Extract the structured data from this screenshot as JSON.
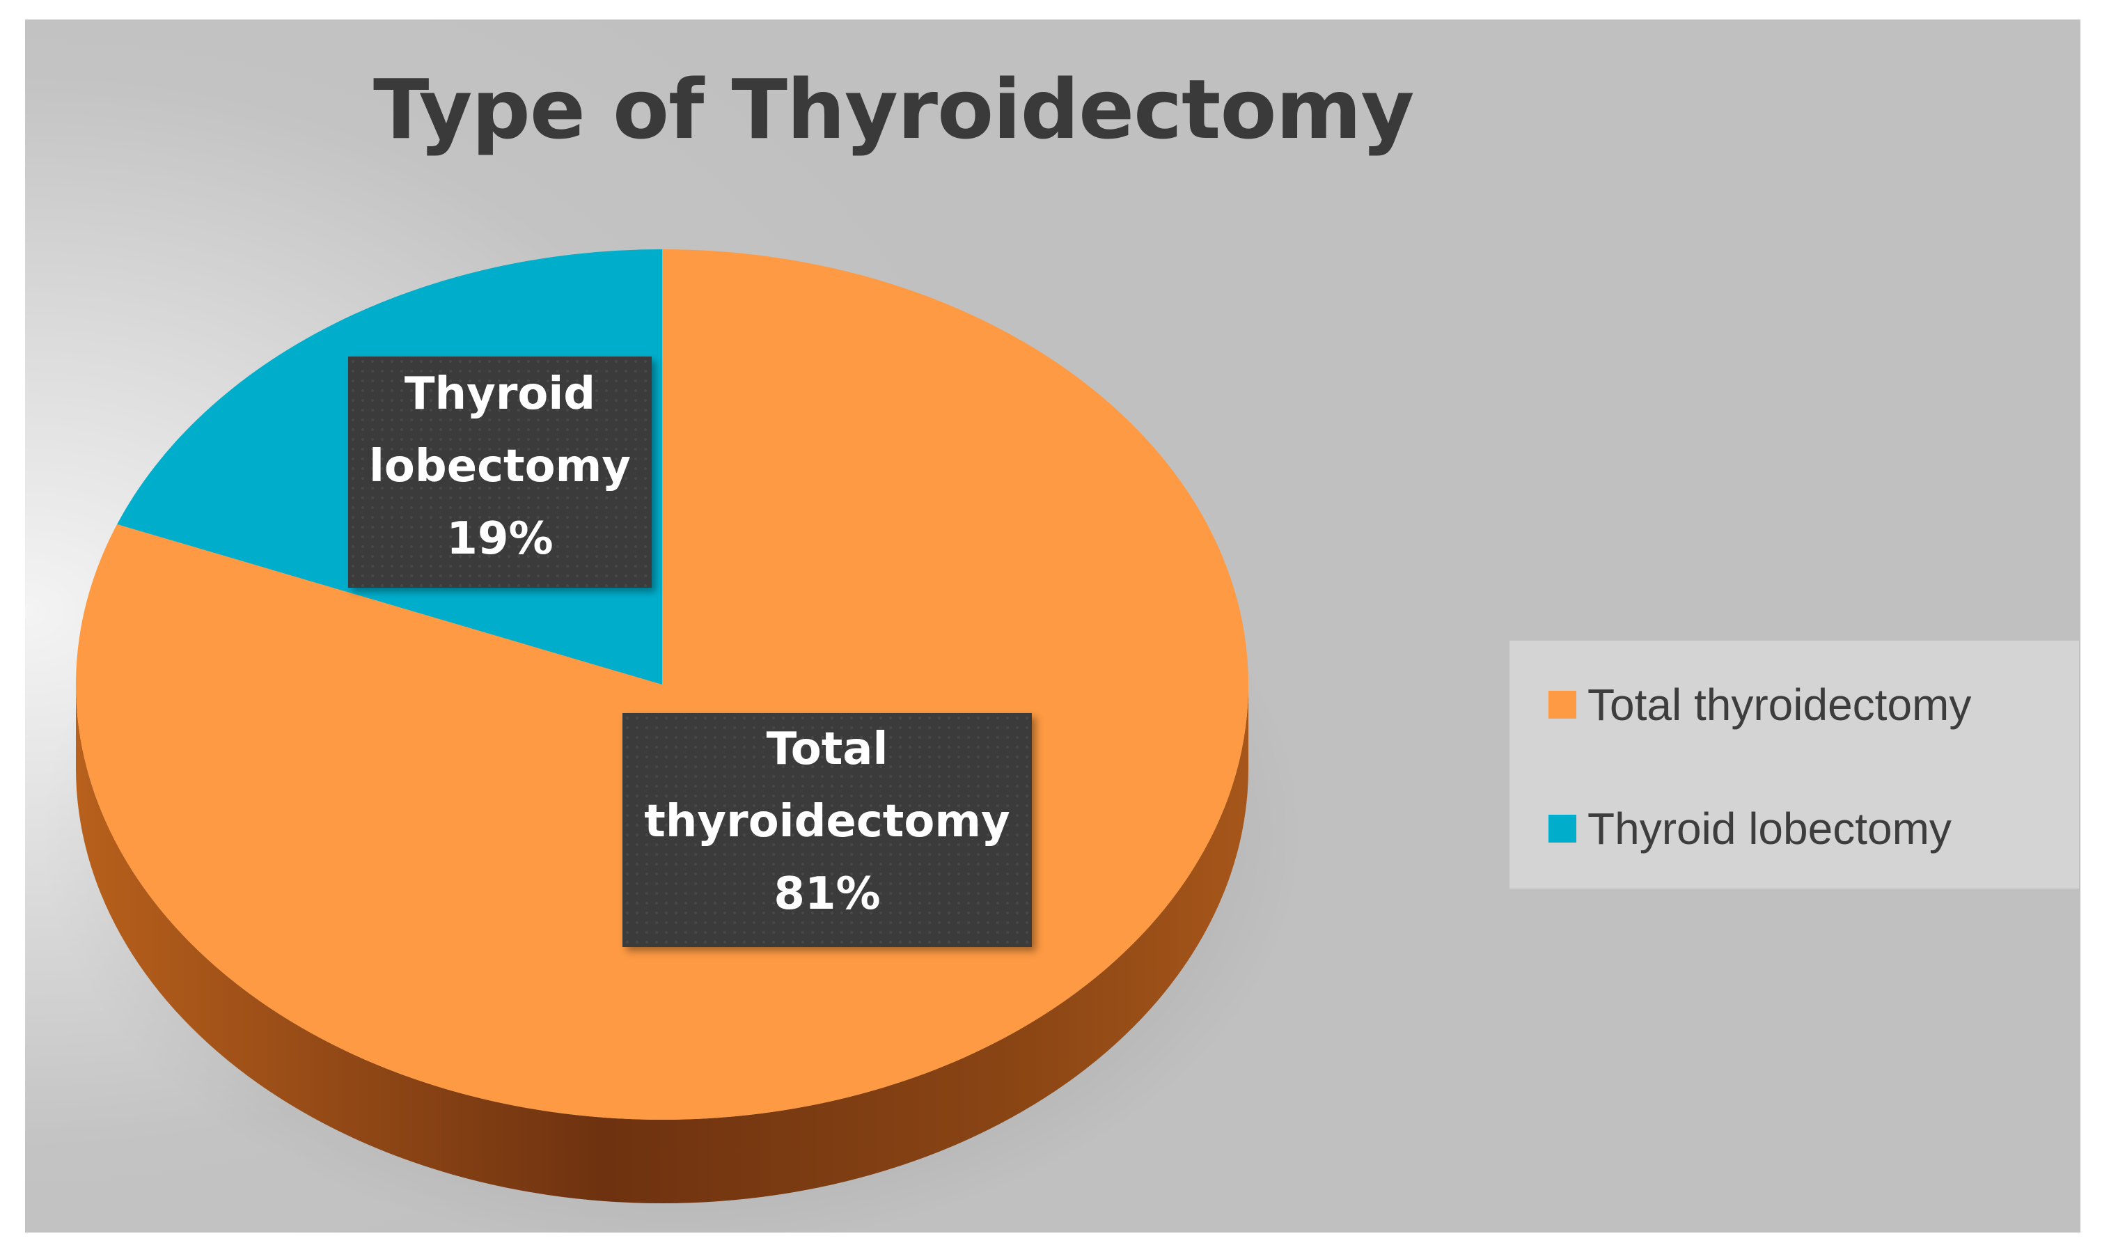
{
  "chart_data": {
    "type": "pie",
    "title": "Type of Thyroidectomy",
    "slices": [
      {
        "name": "Total thyroidectomy",
        "label_lines": [
          "Total",
          "thyroidectomy",
          "81%"
        ],
        "value": 81,
        "color": "#fd9a43"
      },
      {
        "name": "Thyroid lobectomy",
        "label_lines": [
          "Thyroid",
          "lobectomy",
          "19%"
        ],
        "value": 19,
        "color": "#00aecb"
      }
    ],
    "legend_position": "right"
  },
  "legend": {
    "items": [
      {
        "label": "Total thyroidectomy",
        "color": "#fd9a43"
      },
      {
        "label": "Thyroid lobectomy",
        "color": "#00aecb"
      }
    ]
  }
}
